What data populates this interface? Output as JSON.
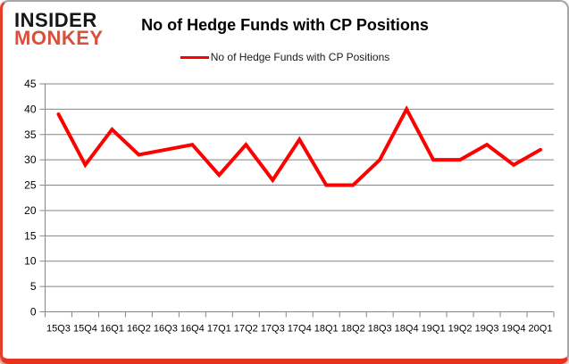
{
  "logo": {
    "line1": "INSIDER",
    "line2": "MONKEY",
    "color": "#d94f3c"
  },
  "header": {
    "title": "No of Hedge Funds with CP Positions"
  },
  "legend": {
    "label": "No of Hedge Funds with CP Positions",
    "line_color": "#ff0000"
  },
  "chart_data": {
    "type": "line",
    "title": "No of Hedge Funds with CP Positions",
    "categories": [
      "15Q3",
      "15Q4",
      "16Q1",
      "16Q2",
      "16Q3",
      "16Q4",
      "17Q1",
      "17Q2",
      "17Q3",
      "17Q4",
      "18Q1",
      "18Q2",
      "18Q3",
      "18Q4",
      "19Q1",
      "19Q2",
      "19Q3",
      "19Q4",
      "20Q1"
    ],
    "series": [
      {
        "name": "No of Hedge Funds with CP Positions",
        "color": "#ff0000",
        "values": [
          39,
          29,
          36,
          31,
          32,
          33,
          27,
          33,
          26,
          34,
          25,
          25,
          30,
          40,
          30,
          30,
          33,
          29,
          32
        ]
      }
    ],
    "xlabel": "",
    "ylabel": "",
    "ylim": [
      0,
      45
    ],
    "ytick_step": 5,
    "grid": true,
    "legend_position": "top",
    "gridline_color": "#858585",
    "axis_color": "#858585",
    "text_color": "#000000"
  }
}
